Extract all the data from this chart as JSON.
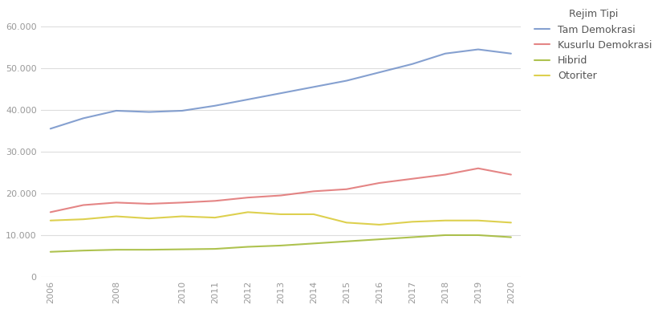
{
  "legend_title": "Rejim Tipi",
  "years": [
    2006,
    2007,
    2008,
    2009,
    2010,
    2011,
    2012,
    2013,
    2014,
    2015,
    2016,
    2017,
    2018,
    2019,
    2020
  ],
  "xtick_years": [
    2006,
    2008,
    2010,
    2011,
    2012,
    2013,
    2014,
    2015,
    2016,
    2017,
    2018,
    2019,
    2020
  ],
  "series": [
    {
      "label": "Tam Demokrasi",
      "color": "#7090c8",
      "values": [
        35500,
        38000,
        39800,
        39500,
        39800,
        41000,
        42500,
        44000,
        45500,
        47000,
        49000,
        51000,
        53500,
        54500,
        53500
      ]
    },
    {
      "label": "Kusurlu Demokrasi",
      "color": "#e07070",
      "values": [
        15500,
        17200,
        17800,
        17500,
        17800,
        18200,
        19000,
        19500,
        20500,
        21000,
        22500,
        23500,
        24500,
        26000,
        24500
      ]
    },
    {
      "label": "Hibrid",
      "color": "#a0b830",
      "values": [
        6000,
        6300,
        6500,
        6500,
        6600,
        6700,
        7200,
        7500,
        8000,
        8500,
        9000,
        9500,
        10000,
        10000,
        9500
      ]
    },
    {
      "label": "Otoriter",
      "color": "#d8c830",
      "values": [
        13500,
        13800,
        14500,
        14000,
        14500,
        14200,
        15500,
        15000,
        15000,
        13000,
        12500,
        13200,
        13500,
        13500,
        13000
      ]
    }
  ],
  "ylim": [
    0,
    65000
  ],
  "yticks": [
    0,
    10000,
    20000,
    30000,
    40000,
    50000,
    60000
  ],
  "background_color": "#ffffff",
  "grid_color": "#dddddd",
  "tick_label_color": "#999999",
  "legend_text_color": "#555555",
  "legend_fontsize": 9,
  "axis_label_fontsize": 8,
  "linewidth": 1.5,
  "line_alpha": 0.85
}
